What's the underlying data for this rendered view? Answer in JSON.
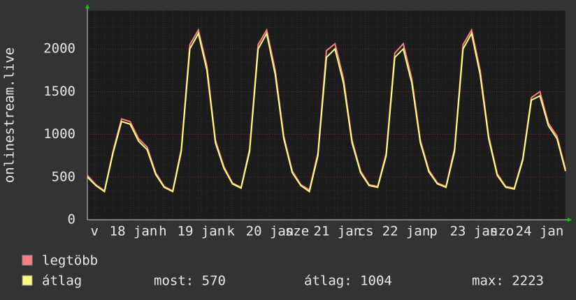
{
  "chart_data": {
    "type": "line",
    "ylabel": "onlinestream.live",
    "x": [
      0,
      3,
      6,
      9,
      12,
      15,
      18,
      21,
      24,
      27,
      30,
      33,
      36,
      39,
      42,
      45,
      48,
      51,
      54,
      57,
      60,
      63,
      66,
      69,
      72,
      75,
      78,
      81,
      84,
      87,
      90,
      93,
      96,
      99,
      102,
      105,
      108,
      111,
      114,
      117,
      120,
      123,
      126,
      129,
      132,
      135,
      138,
      141,
      144,
      147,
      150,
      153,
      156,
      159,
      162,
      165,
      168
    ],
    "xlim": [
      0,
      168
    ],
    "xticks": [
      {
        "value": 2.5,
        "label": "v"
      },
      {
        "value": 16.2,
        "label": "18 jan"
      },
      {
        "value": 26.5,
        "label": "h"
      },
      {
        "value": 40,
        "label": "19 jan"
      },
      {
        "value": 50.4,
        "label": "k"
      },
      {
        "value": 64.1,
        "label": "20 jan"
      },
      {
        "value": 73.7,
        "label": "sze"
      },
      {
        "value": 87.9,
        "label": "21 jan"
      },
      {
        "value": 97.8,
        "label": "cs"
      },
      {
        "value": 112,
        "label": "22 jan"
      },
      {
        "value": 121.6,
        "label": "p"
      },
      {
        "value": 135.8,
        "label": "23 jan"
      },
      {
        "value": 145.7,
        "label": "szo"
      },
      {
        "value": 158.9,
        "label": "24 jan"
      }
    ],
    "ylim": [
      0,
      2450
    ],
    "yticks": [
      0,
      500,
      1000,
      1500,
      2000
    ],
    "grid": true,
    "series": [
      {
        "name": "legtöbb",
        "color": "#ff7f7f",
        "values": [
          520,
          410,
          340,
          800,
          1180,
          1150,
          950,
          850,
          550,
          390,
          340,
          830,
          2050,
          2220,
          1800,
          930,
          620,
          430,
          380,
          830,
          2050,
          2220,
          1750,
          980,
          570,
          410,
          350,
          780,
          1980,
          2060,
          1650,
          930,
          570,
          410,
          390,
          780,
          1950,
          2060,
          1650,
          930,
          580,
          430,
          390,
          830,
          2050,
          2220,
          1750,
          980,
          540,
          390,
          370,
          720,
          1430,
          1500,
          1130,
          980,
          590
        ]
      },
      {
        "name": "átlag",
        "color": "#ffff80",
        "values": [
          500,
          400,
          330,
          780,
          1150,
          1120,
          920,
          820,
          530,
          380,
          330,
          800,
          2000,
          2180,
          1750,
          900,
          600,
          420,
          370,
          800,
          2000,
          2180,
          1700,
          950,
          550,
          400,
          330,
          750,
          1900,
          2000,
          1600,
          900,
          550,
          400,
          380,
          750,
          1900,
          2000,
          1600,
          900,
          560,
          420,
          380,
          800,
          2000,
          2180,
          1700,
          950,
          520,
          380,
          360,
          700,
          1400,
          1450,
          1100,
          950,
          570
        ]
      }
    ],
    "stats": [
      "most: 570",
      "átlag: 1004",
      "max: 2223"
    ]
  }
}
